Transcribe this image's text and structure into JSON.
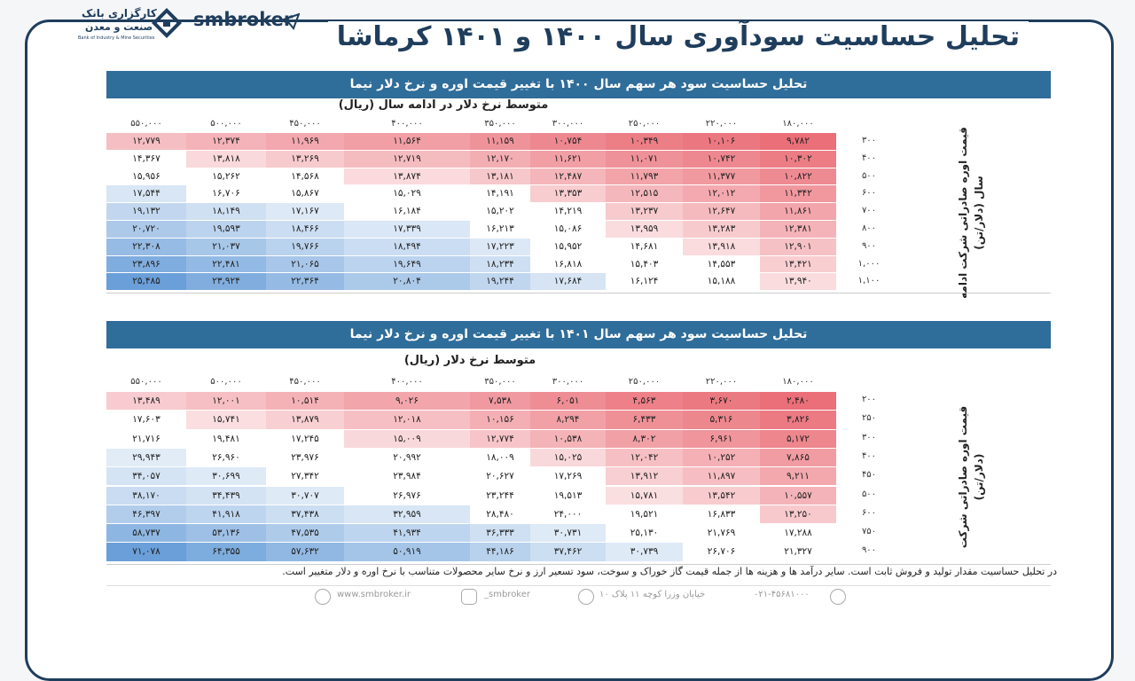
{
  "header": {
    "title": "تحلیل حساسیت سودآوری سال ۱۴۰۰ و ۱۴۰۱ کرماشا",
    "brand": "smbroker",
    "bank_line1": "کارگزاری بانک",
    "bank_line2": "صنعت و معدن",
    "bank_en": "Bank of Industry & Mine Securities"
  },
  "tables": [
    {
      "title": "تحلیل حساسیت سود هر سهم سال ۱۴۰۰ با تغییر قیمت اوره و نرخ دلار نیما",
      "column_axis_label": "متوسط نرخ دلار در ادامه سال (ریال)",
      "row_axis_label": [
        "قیمت اوره صادراتی شرکت ادامه",
        "سال (دلار/تن)"
      ],
      "columns": [
        "۱۸۰,۰۰۰",
        "۲۲۰,۰۰۰",
        "۲۵۰,۰۰۰",
        "۳۰۰,۰۰۰",
        "۳۵۰,۰۰۰",
        "۴۰۰,۰۰۰",
        "۴۵۰,۰۰۰",
        "۵۰۰,۰۰۰",
        "۵۵۰,۰۰۰"
      ],
      "rows": [
        {
          "label": "۳۰۰",
          "cells": [
            "۹,۷۸۲",
            "۱۰,۱۰۶",
            "۱۰,۳۴۹",
            "۱۰,۷۵۴",
            "۱۱,۱۵۹",
            "۱۱,۵۶۴",
            "۱۱,۹۶۹",
            "۱۲,۳۷۴",
            "۱۲,۷۷۹"
          ]
        },
        {
          "label": "۴۰۰",
          "cells": [
            "۱۰,۳۰۲",
            "۱۰,۷۴۲",
            "۱۱,۰۷۱",
            "۱۱,۶۲۱",
            "۱۲,۱۷۰",
            "۱۲,۷۱۹",
            "۱۳,۲۶۹",
            "۱۳,۸۱۸",
            "۱۴,۳۶۷"
          ]
        },
        {
          "label": "۵۰۰",
          "cells": [
            "۱۰,۸۲۲",
            "۱۱,۳۷۷",
            "۱۱,۷۹۳",
            "۱۲,۴۸۷",
            "۱۳,۱۸۱",
            "۱۳,۸۷۴",
            "۱۴,۵۶۸",
            "۱۵,۲۶۲",
            "۱۵,۹۵۶"
          ]
        },
        {
          "label": "۶۰۰",
          "cells": [
            "۱۱,۳۴۲",
            "۱۲,۰۱۲",
            "۱۲,۵۱۵",
            "۱۳,۳۵۳",
            "۱۴,۱۹۱",
            "۱۵,۰۲۹",
            "۱۵,۸۶۷",
            "۱۶,۷۰۶",
            "۱۷,۵۴۴"
          ]
        },
        {
          "label": "۷۰۰",
          "cells": [
            "۱۱,۸۶۱",
            "۱۲,۶۴۷",
            "۱۳,۲۳۷",
            "۱۴,۲۱۹",
            "۱۵,۲۰۲",
            "۱۶,۱۸۴",
            "۱۷,۱۶۷",
            "۱۸,۱۴۹",
            "۱۹,۱۳۲"
          ]
        },
        {
          "label": "۸۰۰",
          "cells": [
            "۱۲,۳۸۱",
            "۱۳,۲۸۳",
            "۱۳,۹۵۹",
            "۱۵,۰۸۶",
            "۱۶,۲۱۳",
            "۱۷,۳۳۹",
            "۱۸,۴۶۶",
            "۱۹,۵۹۳",
            "۲۰,۷۲۰"
          ]
        },
        {
          "label": "۹۰۰",
          "cells": [
            "۱۲,۹۰۱",
            "۱۳,۹۱۸",
            "۱۴,۶۸۱",
            "۱۵,۹۵۲",
            "۱۷,۲۲۳",
            "۱۸,۴۹۴",
            "۱۹,۷۶۶",
            "۲۱,۰۳۷",
            "۲۲,۳۰۸"
          ]
        },
        {
          "label": "۱,۰۰۰",
          "cells": [
            "۱۳,۴۲۱",
            "۱۴,۵۵۳",
            "۱۵,۴۰۳",
            "۱۶,۸۱۸",
            "۱۸,۲۳۴",
            "۱۹,۶۴۹",
            "۲۱,۰۶۵",
            "۲۲,۴۸۱",
            "۲۳,۸۹۶"
          ]
        },
        {
          "label": "۱,۱۰۰",
          "cells": [
            "۱۳,۹۴۰",
            "۱۵,۱۸۸",
            "۱۶,۱۲۴",
            "۱۷,۶۸۴",
            "۱۹,۲۴۴",
            "۲۰,۸۰۴",
            "۲۲,۳۶۴",
            "۲۳,۹۲۴",
            "۲۵,۴۸۵"
          ]
        }
      ]
    },
    {
      "title": "تحلیل حساسیت سود هر سهم سال ۱۴۰۱ با تغییر قیمت اوره و نرخ دلار نیما",
      "column_axis_label": "متوسط نرخ دلار (ریال)",
      "row_axis_label": [
        "قیمت اوره صادراتی شرکت",
        "(دلار/تن)"
      ],
      "columns": [
        "۱۸۰,۰۰۰",
        "۲۲۰,۰۰۰",
        "۲۵۰,۰۰۰",
        "۳۰۰,۰۰۰",
        "۳۵۰,۰۰۰",
        "۴۰۰,۰۰۰",
        "۴۵۰,۰۰۰",
        "۵۰۰,۰۰۰",
        "۵۵۰,۰۰۰"
      ],
      "rows": [
        {
          "label": "۲۰۰",
          "cells": [
            "۲,۴۸۰",
            "۳,۶۷۰",
            "۴,۵۶۳",
            "۶,۰۵۱",
            "۷,۵۳۸",
            "۹,۰۲۶",
            "۱۰,۵۱۴",
            "۱۲,۰۰۱",
            "۱۳,۴۸۹"
          ]
        },
        {
          "label": "۲۵۰",
          "cells": [
            "۳,۸۲۶",
            "۵,۳۱۶",
            "۶,۴۳۳",
            "۸,۲۹۴",
            "۱۰,۱۵۶",
            "۱۲,۰۱۸",
            "۱۳,۸۷۹",
            "۱۵,۷۴۱",
            "۱۷,۶۰۳"
          ]
        },
        {
          "label": "۳۰۰",
          "cells": [
            "۵,۱۷۲",
            "۶,۹۶۱",
            "۸,۳۰۲",
            "۱۰,۵۳۸",
            "۱۲,۷۷۴",
            "۱۵,۰۰۹",
            "۱۷,۲۴۵",
            "۱۹,۴۸۱",
            "۲۱,۷۱۶"
          ]
        },
        {
          "label": "۴۰۰",
          "cells": [
            "۷,۸۶۵",
            "۱۰,۲۵۲",
            "۱۲,۰۴۲",
            "۱۵,۰۲۵",
            "۱۸,۰۰۹",
            "۲۰,۹۹۲",
            "۲۳,۹۷۶",
            "۲۶,۹۶۰",
            "۲۹,۹۴۳"
          ]
        },
        {
          "label": "۴۵۰",
          "cells": [
            "۹,۲۱۱",
            "۱۱,۸۹۷",
            "۱۳,۹۱۲",
            "۱۷,۲۶۹",
            "۲۰,۶۲۷",
            "۲۳,۹۸۴",
            "۲۷,۳۴۲",
            "۳۰,۶۹۹",
            "۳۴,۰۵۷"
          ]
        },
        {
          "label": "۵۰۰",
          "cells": [
            "۱۰,۵۵۷",
            "۱۳,۵۴۲",
            "۱۵,۷۸۱",
            "۱۹,۵۱۳",
            "۲۳,۲۴۴",
            "۲۶,۹۷۶",
            "۳۰,۷۰۷",
            "۳۴,۴۳۹",
            "۳۸,۱۷۰"
          ]
        },
        {
          "label": "۶۰۰",
          "cells": [
            "۱۳,۲۵۰",
            "۱۶,۸۳۳",
            "۱۹,۵۲۱",
            "۲۴,۰۰۰",
            "۲۸,۴۸۰",
            "۳۲,۹۵۹",
            "۳۷,۴۳۸",
            "۴۱,۹۱۸",
            "۴۶,۳۹۷"
          ]
        },
        {
          "label": "۷۵۰",
          "cells": [
            "۱۷,۲۸۸",
            "۲۱,۷۶۹",
            "۲۵,۱۳۰",
            "۳۰,۷۳۱",
            "۳۶,۳۳۳",
            "۴۱,۹۳۴",
            "۴۷,۵۳۵",
            "۵۳,۱۳۶",
            "۵۸,۷۳۷"
          ]
        },
        {
          "label": "۹۰۰",
          "cells": [
            "۲۱,۳۲۷",
            "۲۶,۷۰۶",
            "۳۰,۷۳۹",
            "۳۷,۴۶۲",
            "۴۴,۱۸۶",
            "۵۰,۹۱۹",
            "۵۷,۶۳۲",
            "۶۴,۳۵۵",
            "۷۱,۰۷۸"
          ]
        }
      ]
    }
  ],
  "footnote": "در تحلیل حساسیت مقدار تولید و فروش ثابت است. سایر درآمد ها و هزینه ها از جمله قیمت گاز خوراک و سوخت، سود تسعیر ارز و نرخ سایر محصولات متناسب با نرخ اوره و دلار متغییر است.",
  "contacts": {
    "phone": "۰۲۱-۴۵۶۸۱۰۰۰",
    "address": "خیابان وزرا کوچه ۱۱ پلاک ۱۰",
    "instagram": "smbroker_",
    "website": "www.smbroker.ir"
  }
}
